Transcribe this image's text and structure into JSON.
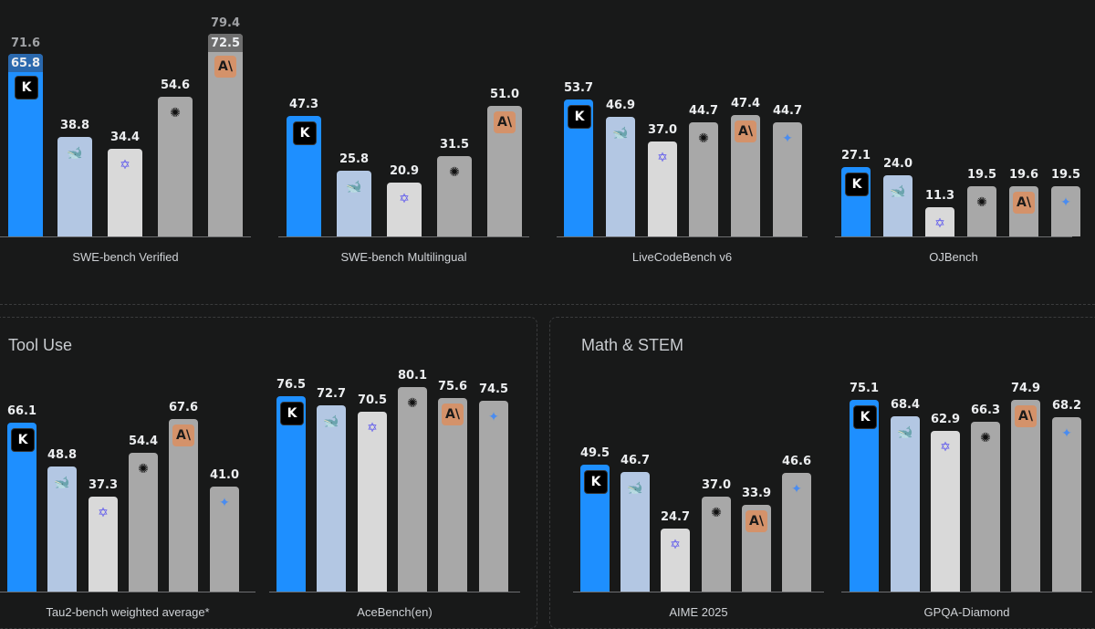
{
  "sections": [
    {
      "title": "Tool Use"
    },
    {
      "title": "Math & STEM"
    }
  ],
  "colors": {
    "kimi": "#1e8fff",
    "deepseek": "#b3c7e3",
    "qwen": "#d9d9d9",
    "openai": "#a8a8a8",
    "anthropic": "#a8a8a8",
    "gemini": "#a8a8a8"
  },
  "chart_data": [
    {
      "type": "bar",
      "title": "SWE-bench Verified",
      "models": [
        "kimi",
        "deepseek",
        "qwen",
        "openai",
        "anthropic"
      ],
      "values": [
        65.8,
        38.8,
        34.4,
        54.6,
        72.5
      ],
      "extended_values": [
        71.6,
        null,
        null,
        null,
        79.4
      ]
    },
    {
      "type": "bar",
      "title": "SWE-bench Multilingual",
      "models": [
        "kimi",
        "deepseek",
        "qwen",
        "openai",
        "anthropic"
      ],
      "values": [
        47.3,
        25.8,
        20.9,
        31.5,
        51.0
      ]
    },
    {
      "type": "bar",
      "title": "LiveCodeBench v6",
      "models": [
        "kimi",
        "deepseek",
        "qwen",
        "openai",
        "anthropic",
        "gemini"
      ],
      "values": [
        53.7,
        46.9,
        37.0,
        44.7,
        47.4,
        44.7
      ]
    },
    {
      "type": "bar",
      "title": "OJBench",
      "models": [
        "kimi",
        "deepseek",
        "qwen",
        "openai",
        "anthropic",
        "gemini"
      ],
      "values": [
        27.1,
        24.0,
        11.3,
        19.5,
        19.6,
        19.5
      ]
    },
    {
      "type": "bar",
      "title": "Tau2-bench weighted average*",
      "models": [
        "kimi",
        "deepseek",
        "qwen",
        "openai",
        "anthropic",
        "gemini"
      ],
      "values": [
        66.1,
        48.8,
        37.3,
        54.4,
        67.6,
        41.0
      ]
    },
    {
      "type": "bar",
      "title": "AceBench(en)",
      "models": [
        "kimi",
        "deepseek",
        "qwen",
        "openai",
        "anthropic",
        "gemini"
      ],
      "values": [
        76.5,
        72.7,
        70.5,
        80.1,
        75.6,
        74.5
      ]
    },
    {
      "type": "bar",
      "title": "AIME 2025",
      "models": [
        "kimi",
        "deepseek",
        "qwen",
        "openai",
        "anthropic",
        "gemini"
      ],
      "values": [
        49.5,
        46.7,
        24.7,
        37.0,
        33.9,
        46.6
      ]
    },
    {
      "type": "bar",
      "title": "GPQA-Diamond",
      "models": [
        "kimi",
        "deepseek",
        "qwen",
        "openai",
        "anthropic",
        "gemini"
      ],
      "values": [
        75.1,
        68.4,
        62.9,
        66.3,
        74.9,
        68.2
      ]
    }
  ]
}
